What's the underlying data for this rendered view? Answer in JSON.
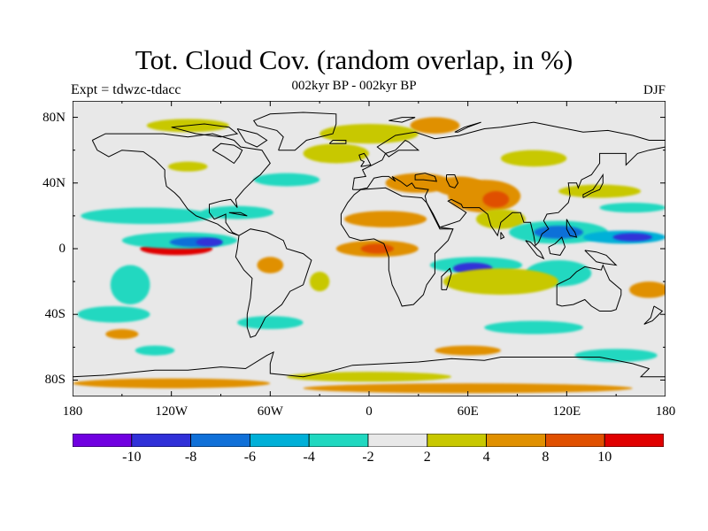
{
  "title": "Tot. Cloud Cov. (random overlap, in %)",
  "subtitle": "002kyr BP - 002kyr BP",
  "left_label": "Expt = tdwzc-tdacc",
  "right_label": "DJF",
  "lat_ticks": [
    {
      "label": "80N",
      "lat": 80
    },
    {
      "label": "40N",
      "lat": 40
    },
    {
      "label": "0",
      "lat": 0
    },
    {
      "label": "40S",
      "lat": -40
    },
    {
      "label": "80S",
      "lat": -80
    }
  ],
  "lon_ticks": [
    {
      "label": "180",
      "lon": -180
    },
    {
      "label": "120W",
      "lon": -120
    },
    {
      "label": "60W",
      "lon": -60
    },
    {
      "label": "0",
      "lon": 0
    },
    {
      "label": "60E",
      "lon": 60
    },
    {
      "label": "120E",
      "lon": 120
    },
    {
      "label": "180",
      "lon": 180
    }
  ],
  "colorbar": {
    "colors": [
      "#7000e0",
      "#3030d8",
      "#1070d8",
      "#00b0d8",
      "#20d8c0",
      "#e8e8e8",
      "#c8c800",
      "#e09000",
      "#e05000",
      "#e00000"
    ],
    "tick_labels": [
      "-10",
      "-8",
      "-6",
      "-4",
      "-2",
      "2",
      "4",
      "8",
      "10"
    ]
  },
  "chart_data": {
    "type": "heatmap",
    "title": "Tot. Cloud Cov. (random overlap, in %)",
    "subtitle": "002kyr BP - 002kyr BP",
    "projection": "cylindrical-equidistant",
    "lon_range": [
      -180,
      180
    ],
    "lat_range": [
      -90,
      90
    ],
    "contour_levels": [
      -10,
      -8,
      -6,
      -4,
      -2,
      2,
      4,
      8,
      10
    ],
    "background_color": "#e8e8e8",
    "features": [
      {
        "lon": -117,
        "lat": 0,
        "rx": 22,
        "ry": 4,
        "value": 10
      },
      {
        "lon": -117,
        "lat": 0,
        "rx": 14,
        "ry": 2.5,
        "value": 12
      },
      {
        "lon": -115,
        "lat": 5,
        "rx": 35,
        "ry": 5,
        "value": -4
      },
      {
        "lon": -105,
        "lat": 4,
        "rx": 16,
        "ry": 3,
        "value": -8
      },
      {
        "lon": -97,
        "lat": 4,
        "rx": 8,
        "ry": 2.5,
        "value": -10
      },
      {
        "lon": -135,
        "lat": 20,
        "rx": 40,
        "ry": 5,
        "value": -3
      },
      {
        "lon": -80,
        "lat": 22,
        "rx": 22,
        "ry": 4,
        "value": -3
      },
      {
        "lon": -145,
        "lat": -22,
        "rx": 12,
        "ry": 12,
        "value": -3
      },
      {
        "lon": -155,
        "lat": -40,
        "rx": 22,
        "ry": 5,
        "value": -3
      },
      {
        "lon": -150,
        "lat": -52,
        "rx": 10,
        "ry": 3,
        "value": 6
      },
      {
        "lon": -130,
        "lat": -62,
        "rx": 12,
        "ry": 3,
        "value": -3
      },
      {
        "lon": -60,
        "lat": -10,
        "rx": 8,
        "ry": 5,
        "value": 6
      },
      {
        "lon": -30,
        "lat": -20,
        "rx": 6,
        "ry": 6,
        "value": 3
      },
      {
        "lon": -110,
        "lat": 50,
        "rx": 12,
        "ry": 3,
        "value": 3
      },
      {
        "lon": -50,
        "lat": 42,
        "rx": 20,
        "ry": 4,
        "value": -3
      },
      {
        "lon": -20,
        "lat": 58,
        "rx": 20,
        "ry": 6,
        "value": 3
      },
      {
        "lon": 5,
        "lat": 0,
        "rx": 25,
        "ry": 5,
        "value": 6
      },
      {
        "lon": 5,
        "lat": 0,
        "rx": 10,
        "ry": 3,
        "value": 9
      },
      {
        "lon": 10,
        "lat": 18,
        "rx": 25,
        "ry": 5,
        "value": 6
      },
      {
        "lon": 30,
        "lat": 40,
        "rx": 20,
        "ry": 6,
        "value": 6
      },
      {
        "lon": 55,
        "lat": 38,
        "rx": 15,
        "ry": 6,
        "value": 6
      },
      {
        "lon": 70,
        "lat": 32,
        "rx": 22,
        "ry": 10,
        "value": 6
      },
      {
        "lon": 77,
        "lat": 30,
        "rx": 8,
        "ry": 5,
        "value": 9
      },
      {
        "lon": 80,
        "lat": 18,
        "rx": 15,
        "ry": 6,
        "value": 3
      },
      {
        "lon": 40,
        "lat": 75,
        "rx": 15,
        "ry": 5,
        "value": 6
      },
      {
        "lon": 0,
        "lat": 70,
        "rx": 30,
        "ry": 6,
        "value": 3
      },
      {
        "lon": -110,
        "lat": 75,
        "rx": 25,
        "ry": 4,
        "value": 3
      },
      {
        "lon": 115,
        "lat": 10,
        "rx": 30,
        "ry": 7,
        "value": -4
      },
      {
        "lon": 115,
        "lat": 10,
        "rx": 15,
        "ry": 4,
        "value": -7
      },
      {
        "lon": 155,
        "lat": 7,
        "rx": 25,
        "ry": 4,
        "value": -5
      },
      {
        "lon": 160,
        "lat": 7,
        "rx": 12,
        "ry": 2.5,
        "value": -9
      },
      {
        "lon": 65,
        "lat": -10,
        "rx": 28,
        "ry": 5,
        "value": -4
      },
      {
        "lon": 63,
        "lat": -12,
        "rx": 12,
        "ry": 3.5,
        "value": -9
      },
      {
        "lon": 115,
        "lat": -15,
        "rx": 20,
        "ry": 8,
        "value": -3
      },
      {
        "lon": 80,
        "lat": -20,
        "rx": 35,
        "ry": 8,
        "value": 3
      },
      {
        "lon": 170,
        "lat": -25,
        "rx": 12,
        "ry": 5,
        "value": 6
      },
      {
        "lon": 60,
        "lat": -62,
        "rx": 20,
        "ry": 3,
        "value": 6
      },
      {
        "lon": 100,
        "lat": -48,
        "rx": 30,
        "ry": 4,
        "value": -3
      },
      {
        "lon": -60,
        "lat": -45,
        "rx": 20,
        "ry": 4,
        "value": -3
      },
      {
        "lon": -120,
        "lat": -82,
        "rx": 60,
        "ry": 3,
        "value": 6
      },
      {
        "lon": 60,
        "lat": -85,
        "rx": 100,
        "ry": 3,
        "value": 6
      },
      {
        "lon": 0,
        "lat": -78,
        "rx": 50,
        "ry": 3,
        "value": 3
      },
      {
        "lon": 150,
        "lat": -65,
        "rx": 25,
        "ry": 4,
        "value": -3
      },
      {
        "lon": 100,
        "lat": 55,
        "rx": 20,
        "ry": 5,
        "value": 3
      },
      {
        "lon": 140,
        "lat": 35,
        "rx": 25,
        "ry": 4,
        "value": 3
      },
      {
        "lon": 160,
        "lat": 25,
        "rx": 20,
        "ry": 3,
        "value": -3
      }
    ]
  }
}
